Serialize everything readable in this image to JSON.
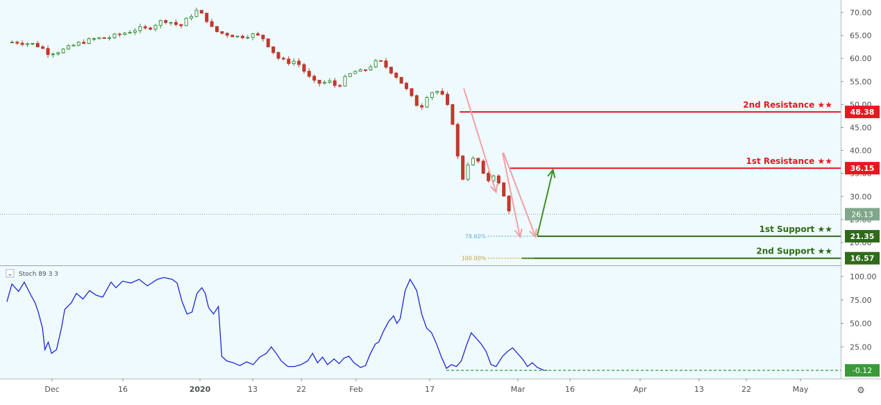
{
  "colors": {
    "background": "#eefafd",
    "up_candle": "#3e8e3e",
    "down_candle": "#c0392b",
    "resistance": "#e8171f",
    "support": "#2e6b1a",
    "arrow_down": "#f0a0a4",
    "arrow_up": "#3f8f25",
    "stoch_line": "#1b25d6",
    "fib_786": "#5fb0d6",
    "fib_100": "#c9a227",
    "current_price": "#7fa88a"
  },
  "indicator_label": "Stoch 89 3 3",
  "x_axis_labels": [
    "Dec",
    "16",
    "2020",
    "13",
    "22",
    "Feb",
    "17",
    "Mar",
    "16",
    "Apr",
    "13",
    "22",
    "May"
  ],
  "chart_data": [
    {
      "type": "candlestick",
      "price_ticks": [
        "70.00",
        "65.00",
        "60.00",
        "55.00",
        "50.00",
        "45.00",
        "40.00",
        "35.00",
        "30.00",
        "25.00",
        "20.00"
      ],
      "ylim": [
        15,
        72
      ],
      "current_price": 26.13,
      "current_price_label": "26.13",
      "close_path": [
        [
          0,
          63.5
        ],
        [
          1,
          63.6
        ],
        [
          2,
          63.4
        ],
        [
          3,
          63.2
        ],
        [
          4,
          62.6
        ],
        [
          5,
          61.2
        ],
        [
          6,
          61.4
        ],
        [
          7,
          62.0
        ],
        [
          8,
          62.8
        ],
        [
          9,
          63.5
        ],
        [
          10,
          64.0
        ],
        [
          11,
          64.4
        ],
        [
          12,
          64.4
        ],
        [
          13,
          64.9
        ],
        [
          14,
          65.4
        ],
        [
          15,
          66.0
        ],
        [
          16,
          66.5
        ],
        [
          17,
          66.4
        ],
        [
          18,
          67.5
        ],
        [
          19,
          68.4
        ],
        [
          20,
          67.8
        ],
        [
          21,
          67.0
        ],
        [
          22,
          69.0
        ],
        [
          23,
          70.4
        ],
        [
          24,
          68.9
        ],
        [
          25,
          66.1
        ],
        [
          26,
          65.5
        ],
        [
          27,
          65.2
        ],
        [
          28,
          64.7
        ],
        [
          29,
          65.0
        ],
        [
          30,
          65.2
        ],
        [
          31,
          64.4
        ],
        [
          32,
          62.0
        ],
        [
          33,
          59.8
        ],
        [
          34,
          59.2
        ],
        [
          35,
          59.5
        ],
        [
          36,
          57.2
        ],
        [
          37,
          54.9
        ],
        [
          38,
          54.6
        ],
        [
          39,
          55.0
        ],
        [
          40,
          53.8
        ],
        [
          41,
          55.8
        ],
        [
          42,
          57.2
        ],
        [
          43,
          57.1
        ],
        [
          44,
          58.4
        ],
        [
          45,
          59.6
        ],
        [
          46,
          58.0
        ],
        [
          47,
          56.4
        ],
        [
          48,
          54.2
        ],
        [
          49,
          51.5
        ],
        [
          50,
          49.0
        ],
        [
          51,
          52.5
        ],
        [
          52,
          53.0
        ],
        [
          53,
          51.4
        ],
        [
          54,
          45.7
        ],
        [
          55,
          33.0
        ],
        [
          56,
          38.2
        ],
        [
          57,
          37.8
        ],
        [
          58,
          33.0
        ],
        [
          59,
          35.0
        ],
        [
          60,
          30.6
        ],
        [
          61,
          26.1
        ]
      ],
      "levels": [
        {
          "name": "2nd Resistance ★★",
          "value": 48.38,
          "label": "48.38",
          "kind": "resistance"
        },
        {
          "name": "1st Resistance ★★",
          "value": 36.15,
          "label": "36.15",
          "kind": "resistance"
        },
        {
          "name": "1st Support ★★",
          "value": 21.35,
          "label": "21.35",
          "kind": "support"
        },
        {
          "name": "2nd Support ★★",
          "value": 16.57,
          "label": "16.57",
          "kind": "support"
        }
      ],
      "fib_levels": [
        {
          "label": "78.60%",
          "value": 21.35
        },
        {
          "label": "100.00%",
          "value": 16.57
        }
      ],
      "arrows": [
        {
          "direction": "down",
          "from": [
            55.3,
            53.5
          ],
          "to": [
            59.2,
            30.9
          ]
        },
        {
          "direction": "up",
          "from": [
            60.0,
            39.5
          ],
          "to": [
            62.1,
            21.2
          ]
        },
        {
          "direction": "down",
          "from": [
            60.1,
            39.5
          ],
          "to": [
            64.0,
            21.2
          ]
        },
        {
          "direction": "up",
          "from": [
            64.2,
            21.5
          ],
          "to": [
            66.1,
            35.8
          ]
        }
      ]
    },
    {
      "type": "line",
      "name": "Stoch 89 3 3",
      "y_ticks": [
        "100.00",
        "75.00",
        "50.00",
        "25.00"
      ],
      "ylim": [
        -5,
        107
      ],
      "current_value": -0.12,
      "current_label": "-0.12",
      "points": [
        [
          0,
          73
        ],
        [
          0.6,
          92
        ],
        [
          1.4,
          84
        ],
        [
          2.1,
          94
        ],
        [
          2.9,
          80
        ],
        [
          3.4,
          72
        ],
        [
          3.8,
          62
        ],
        [
          4.3,
          45
        ],
        [
          4.6,
          22
        ],
        [
          5.0,
          30
        ],
        [
          5.4,
          18
        ],
        [
          6.0,
          22
        ],
        [
          6.6,
          45
        ],
        [
          7.0,
          65
        ],
        [
          7.8,
          72
        ],
        [
          8.4,
          82
        ],
        [
          9.2,
          76
        ],
        [
          10.0,
          85
        ],
        [
          10.8,
          80
        ],
        [
          11.6,
          78
        ],
        [
          12.6,
          94
        ],
        [
          13.2,
          88
        ],
        [
          14.0,
          95
        ],
        [
          15.0,
          93
        ],
        [
          16.0,
          97
        ],
        [
          17.0,
          90
        ],
        [
          18.2,
          97
        ],
        [
          19.0,
          99
        ],
        [
          20.0,
          97
        ],
        [
          20.6,
          93
        ],
        [
          21.2,
          73
        ],
        [
          21.8,
          60
        ],
        [
          22.4,
          62
        ],
        [
          23.0,
          82
        ],
        [
          23.6,
          88
        ],
        [
          24.0,
          82
        ],
        [
          24.4,
          67
        ],
        [
          25.0,
          60
        ],
        [
          25.6,
          68
        ],
        [
          26.0,
          15
        ],
        [
          26.6,
          10
        ],
        [
          27.4,
          8
        ],
        [
          28.2,
          5
        ],
        [
          29.0,
          9
        ],
        [
          29.8,
          6
        ],
        [
          30.6,
          14
        ],
        [
          31.4,
          18
        ],
        [
          32.0,
          25
        ],
        [
          32.6,
          18
        ],
        [
          33.2,
          10
        ],
        [
          34.0,
          4
        ],
        [
          34.8,
          4
        ],
        [
          35.6,
          6
        ],
        [
          36.4,
          10
        ],
        [
          37.0,
          18
        ],
        [
          37.6,
          8
        ],
        [
          38.2,
          14
        ],
        [
          38.8,
          6
        ],
        [
          39.6,
          12
        ],
        [
          40.2,
          7
        ],
        [
          40.8,
          13
        ],
        [
          41.4,
          15
        ],
        [
          42.0,
          8
        ],
        [
          42.8,
          3
        ],
        [
          43.4,
          5
        ],
        [
          44.0,
          18
        ],
        [
          44.6,
          28
        ],
        [
          45.0,
          30
        ],
        [
          45.6,
          42
        ],
        [
          46.2,
          52
        ],
        [
          46.8,
          58
        ],
        [
          47.2,
          50
        ],
        [
          47.6,
          55
        ],
        [
          48.2,
          85
        ],
        [
          48.8,
          97
        ],
        [
          49.6,
          85
        ],
        [
          50.2,
          60
        ],
        [
          50.8,
          45
        ],
        [
          51.4,
          40
        ],
        [
          52.0,
          28
        ],
        [
          52.6,
          14
        ],
        [
          53.2,
          2
        ],
        [
          53.8,
          6
        ],
        [
          54.4,
          4
        ],
        [
          55.0,
          10
        ],
        [
          55.6,
          26
        ],
        [
          56.2,
          40
        ],
        [
          56.8,
          34
        ],
        [
          57.4,
          28
        ],
        [
          58.0,
          20
        ],
        [
          58.6,
          6
        ],
        [
          59.2,
          4
        ],
        [
          60.0,
          15
        ],
        [
          60.6,
          20
        ],
        [
          61.2,
          24
        ],
        [
          61.8,
          18
        ],
        [
          62.4,
          12
        ],
        [
          63.0,
          4
        ],
        [
          63.6,
          8
        ],
        [
          64.2,
          3
        ],
        [
          65.0,
          0
        ],
        [
          65.4,
          0
        ]
      ]
    }
  ]
}
